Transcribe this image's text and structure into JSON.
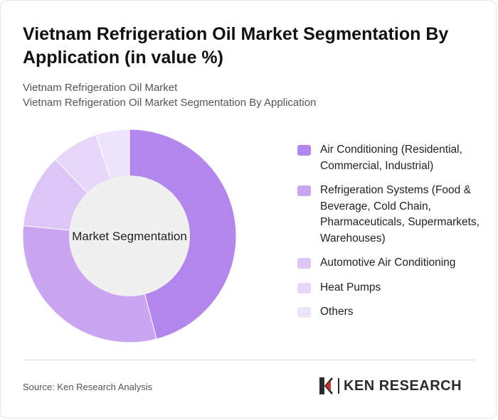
{
  "title": "Vietnam Refrigeration Oil Market Segmentation By Application (in value %)",
  "subtitles": [
    "Vietnam Refrigeration Oil Market",
    "Vietnam Refrigeration Oil Market Segmentation By Application"
  ],
  "chart_data": {
    "type": "pie",
    "donut": true,
    "center_label": "Market Segmentation",
    "categories": [
      "Air Conditioning (Residential, Commercial, Industrial)",
      "Refrigeration Systems (Food & Beverage, Cold Chain, Pharmaceuticals, Supermarkets, Warehouses)",
      "Automotive Air Conditioning",
      "Heat Pumps",
      "Others"
    ],
    "values": [
      45,
      30,
      11,
      7,
      5
    ],
    "colors": [
      "#b386ee",
      "#c9a5f2",
      "#dcc6f7",
      "#e6d7fa",
      "#ede4fb"
    ],
    "legend_position": "right"
  },
  "footer": {
    "source": "Source: Ken Research Analysis",
    "logo_text": "KEN RESEARCH"
  }
}
